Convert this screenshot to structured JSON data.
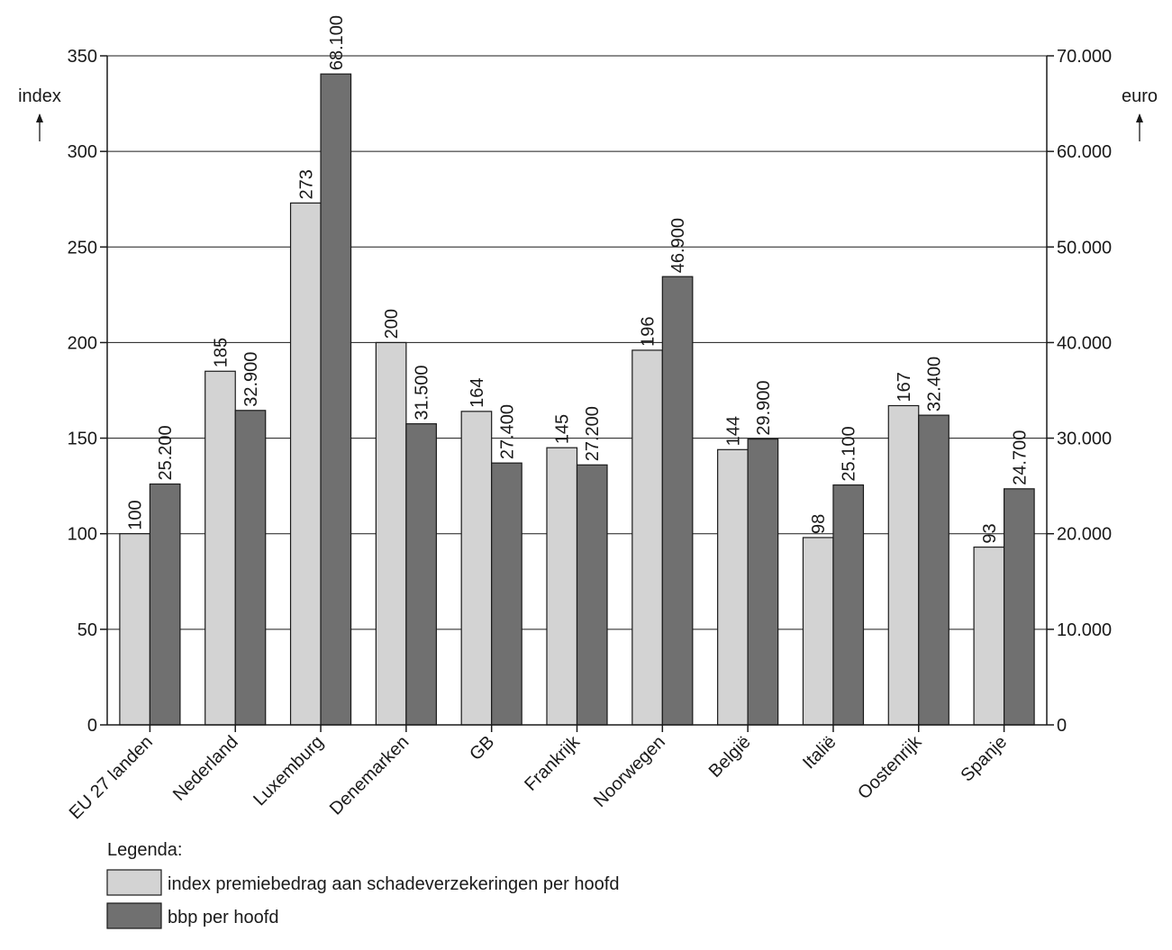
{
  "chart_data": {
    "type": "bar",
    "categories": [
      "EU 27 landen",
      "Nederland",
      "Luxemburg",
      "Denemarken",
      "GB",
      "Frankrijk",
      "Noorwegen",
      "België",
      "Italië",
      "Oostenrijk",
      "Spanje"
    ],
    "series": [
      {
        "name": "index premiebedrag aan schadeverzekeringen per hoofd",
        "axis": "left",
        "values": [
          100,
          185,
          273,
          200,
          164,
          145,
          196,
          144,
          98,
          167,
          93
        ],
        "labels": [
          "100",
          "185",
          "273",
          "200",
          "164",
          "145",
          "196",
          "144",
          "98",
          "167",
          "93"
        ],
        "color": "#d3d3d3"
      },
      {
        "name": "bbp per hoofd",
        "axis": "right",
        "values": [
          25200,
          32900,
          68100,
          31500,
          27400,
          27200,
          46900,
          29900,
          25100,
          32400,
          24700
        ],
        "labels": [
          "25.200",
          "32.900",
          "68.100",
          "31.500",
          "27.400",
          "27.200",
          "46.900",
          "29.900",
          "25.100",
          "32.400",
          "24.700"
        ],
        "color": "#707070"
      }
    ],
    "left_axis": {
      "label": "index",
      "ylim": [
        0,
        350
      ],
      "ticks": [
        0,
        50,
        100,
        150,
        200,
        250,
        300,
        350
      ],
      "tick_labels": [
        "0",
        "50",
        "100",
        "150",
        "200",
        "250",
        "300",
        "350"
      ]
    },
    "right_axis": {
      "label": "euro",
      "ylim": [
        0,
        70000
      ],
      "ticks": [
        0,
        10000,
        20000,
        30000,
        40000,
        50000,
        60000,
        70000
      ],
      "tick_labels": [
        "0",
        "10.000",
        "20.000",
        "30.000",
        "40.000",
        "50.000",
        "60.000",
        "70.000"
      ]
    },
    "grid": true,
    "legend": {
      "title": "Legenda:",
      "position": "bottom-left",
      "entries": [
        "index premiebedrag aan schadeverzekeringen per hoofd",
        "bbp per hoofd"
      ]
    }
  },
  "unit_arrow": "↑"
}
